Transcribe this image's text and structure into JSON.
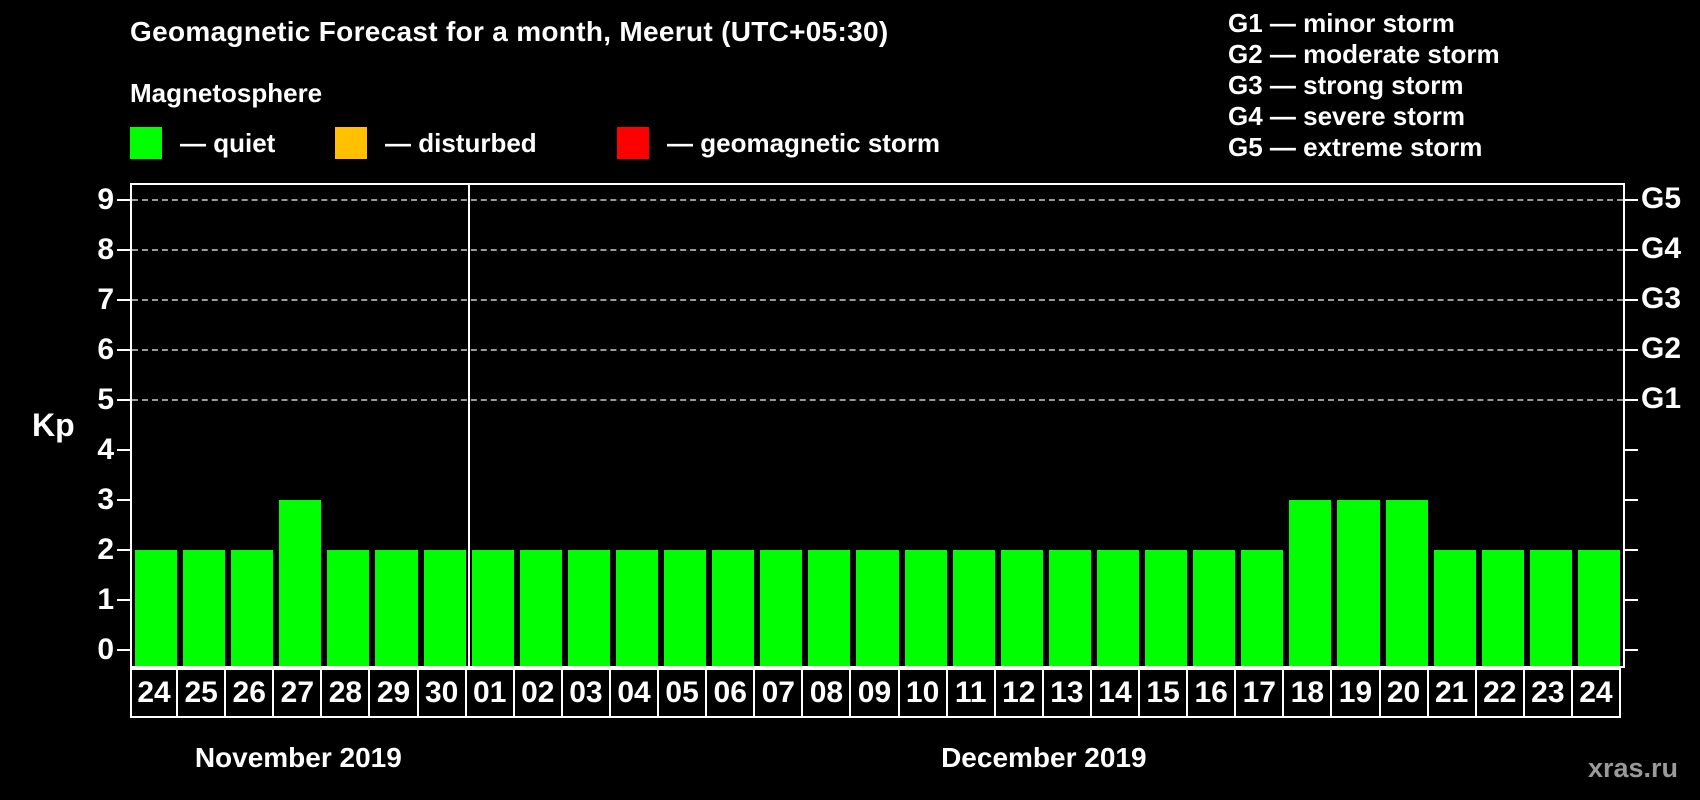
{
  "title": "Geomagnetic Forecast for a month, Meerut (UTC+05:30)",
  "legend": {
    "heading": "Magnetosphere",
    "items": [
      {
        "label": "— quiet",
        "color": "#00ff00"
      },
      {
        "label": "— disturbed",
        "color": "#ffc000"
      },
      {
        "label": "— geomagnetic storm",
        "color": "#ff0000"
      }
    ]
  },
  "storm_scale": [
    "G1 — minor storm",
    "G2 — moderate storm",
    "G3 — strong storm",
    "G4 — severe storm",
    "G5 — extreme storm"
  ],
  "watermark": "xras.ru",
  "chart_data": {
    "type": "bar",
    "title": "Geomagnetic Forecast for a month, Meerut (UTC+05:30)",
    "ylabel": "Kp",
    "ylim": [
      0,
      9
    ],
    "yticks": [
      0,
      1,
      2,
      3,
      4,
      5,
      6,
      7,
      8,
      9
    ],
    "gridlines_kp": [
      5,
      6,
      7,
      8,
      9
    ],
    "grid": "dashed-horizontal-on-storm-levels-only",
    "legend_position": "top",
    "bar_color": "#00ff00",
    "right_axis_labels": [
      {
        "label": "G1",
        "kp": 5
      },
      {
        "label": "G2",
        "kp": 6
      },
      {
        "label": "G3",
        "kp": 7
      },
      {
        "label": "G4",
        "kp": 8
      },
      {
        "label": "G5",
        "kp": 9
      }
    ],
    "sections": [
      {
        "label": "November 2019",
        "days": [
          "24",
          "25",
          "26",
          "27",
          "28",
          "29",
          "30"
        ],
        "values": [
          2,
          2,
          2,
          3,
          2,
          2,
          2
        ]
      },
      {
        "label": "December 2019",
        "days": [
          "01",
          "02",
          "03",
          "04",
          "05",
          "06",
          "07",
          "08",
          "09",
          "10",
          "11",
          "12",
          "13",
          "14",
          "15",
          "16",
          "17",
          "18",
          "19",
          "20",
          "21",
          "22",
          "23",
          "24"
        ],
        "values": [
          2,
          2,
          2,
          2,
          2,
          2,
          2,
          2,
          2,
          2,
          2,
          2,
          2,
          2,
          2,
          2,
          2,
          3,
          3,
          3,
          2,
          2,
          2,
          2
        ]
      }
    ]
  }
}
